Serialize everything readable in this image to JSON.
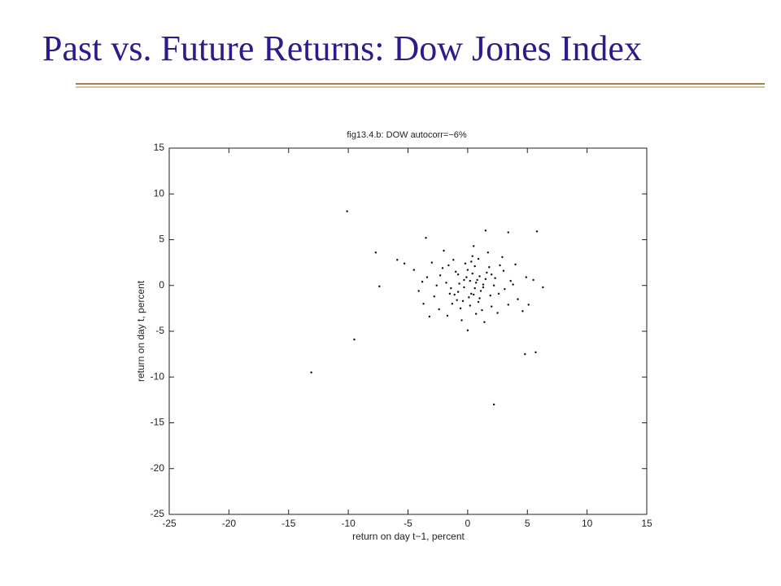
{
  "slide_title": "Past vs. Future Returns: Dow Jones Index",
  "chart_data": {
    "type": "scatter",
    "title": "fig13.4.b: DOW     autocorr=−6%",
    "x_label": "return on day t−1, percent",
    "y_label": "return on day t, percent",
    "xlim": [
      -25,
      15
    ],
    "ylim": [
      -25,
      15
    ],
    "xticks": [
      -25,
      -20,
      -15,
      -10,
      -5,
      0,
      5,
      10,
      15
    ],
    "yticks": [
      -25,
      -20,
      -15,
      -10,
      -5,
      0,
      5,
      10,
      15
    ],
    "color": "#111111",
    "x": [
      0.2,
      -0.8,
      1.1,
      0.6,
      -1.5,
      2.3,
      -2.1,
      0.9,
      -0.3,
      1.6,
      -2.8,
      3.1,
      0.4,
      -1.2,
      2.0,
      -0.6,
      1.3,
      -1.8,
      0.0,
      2.7,
      -3.4,
      3.6,
      0.7,
      -0.9,
      1.9,
      -2.4,
      0.3,
      -0.1,
      1.0,
      -1.4,
      2.5,
      -3.0,
      4.2,
      -4.1,
      0.5,
      1.7,
      -2.0,
      3.0,
      -0.5,
      1.4,
      -3.7,
      4.0,
      0.8,
      -0.7,
      0.1,
      1.2,
      -1.0,
      2.2,
      -2.6,
      0.6,
      -4.5,
      4.6,
      -1.7,
      2.9,
      -0.2,
      3.4,
      -3.2,
      0.9,
      -1.1,
      1.5,
      -0.4,
      0.4,
      2.6,
      -2.3,
      1.8,
      -1.6,
      0.2,
      3.8,
      -3.8,
      0.0,
      1.0,
      -0.8,
      0.7,
      1.3,
      0.5,
      -0.3,
      2.0,
      -1.3,
      0.3,
      4.9,
      -10.1,
      -7.7,
      -7.4,
      -9.5,
      -13.1,
      2.2,
      4.8,
      5.7,
      5.8,
      6.3,
      5.5,
      5.1,
      3.4,
      1.5,
      -3.5,
      -5.3,
      -5.9
    ],
    "y": [
      0.5,
      1.2,
      -0.6,
      2.1,
      -0.9,
      0.8,
      1.9,
      -1.8,
      -0.2,
      1.4,
      -1.2,
      -0.4,
      3.2,
      2.8,
      -2.3,
      -2.5,
      0.1,
      0.3,
      1.7,
      2.2,
      0.9,
      0.5,
      -3.1,
      -1.6,
      -1.1,
      -2.6,
      -0.9,
      0.9,
      1.0,
      -0.3,
      -3.0,
      2.5,
      -1.5,
      -0.6,
      4.3,
      3.6,
      3.8,
      1.6,
      -3.8,
      -4.0,
      -2.0,
      2.3,
      0.6,
      0.2,
      -1.3,
      -2.7,
      1.5,
      0.0,
      0.0,
      -0.3,
      1.7,
      -2.8,
      -3.3,
      3.1,
      2.4,
      -2.1,
      -3.4,
      2.9,
      -1.0,
      0.7,
      -1.7,
      1.3,
      -0.9,
      1.1,
      2.0,
      2.2,
      -2.2,
      0.1,
      0.4,
      -4.9,
      -1.4,
      -0.7,
      0.3,
      -0.2,
      -1.0,
      0.6,
      1.2,
      -2.0,
      2.6,
      0.9,
      8.1,
      3.6,
      -0.1,
      -5.9,
      -9.5,
      -13.0,
      -7.5,
      -7.3,
      5.9,
      -0.2,
      0.6,
      -2.1,
      5.8,
      6.0,
      5.2,
      2.4,
      2.8
    ]
  }
}
